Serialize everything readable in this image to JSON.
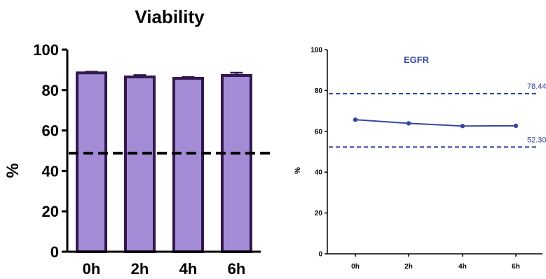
{
  "colors": {
    "bar_fill": "#a38bd6",
    "bar_stroke": "#33184f",
    "axis": "#000000",
    "threshold_left": "#000000",
    "line_series": "#3546a6",
    "ref_lines": "#3546a6"
  },
  "chart_data": [
    {
      "type": "bar",
      "title": "Viability",
      "ylabel": "%",
      "xlabel": "",
      "categories": [
        "0h",
        "2h",
        "4h",
        "6h"
      ],
      "values": [
        88.5,
        86.5,
        85.8,
        87.2
      ],
      "errors": [
        0.6,
        0.9,
        0.6,
        1.4
      ],
      "ylim": [
        0,
        100
      ],
      "yticks": [
        0,
        20,
        40,
        60,
        80,
        100
      ],
      "threshold": 48.8,
      "grid": false
    },
    {
      "type": "line",
      "title": "EGFR",
      "ylabel": "%",
      "xlabel": "",
      "categories": [
        "0h",
        "2h",
        "4h",
        "6h"
      ],
      "values": [
        65.7,
        63.9,
        62.6,
        62.7
      ],
      "ylim": [
        0,
        100
      ],
      "yticks": [
        0,
        20,
        40,
        60,
        80,
        100
      ],
      "reference_lines": [
        {
          "value": 78.44,
          "label": "78.44"
        },
        {
          "value": 52.3,
          "label": "52.30"
        }
      ],
      "grid": false
    }
  ]
}
